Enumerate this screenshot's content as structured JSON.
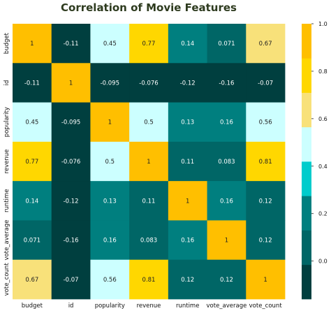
{
  "chart_data": {
    "type": "heatmap",
    "title": "Correlation of Movie Features",
    "variables": [
      "budget",
      "id",
      "popularity",
      "revenue",
      "runtime",
      "vote_average",
      "vote_count"
    ],
    "matrix": [
      [
        1,
        -0.11,
        0.45,
        0.77,
        0.14,
        0.071,
        0.67
      ],
      [
        -0.11,
        1,
        -0.095,
        -0.076,
        -0.12,
        -0.16,
        -0.07
      ],
      [
        0.45,
        -0.095,
        1,
        0.5,
        0.13,
        0.16,
        0.56
      ],
      [
        0.77,
        -0.076,
        0.5,
        1,
        0.11,
        0.083,
        0.81
      ],
      [
        0.14,
        -0.12,
        0.13,
        0.11,
        1,
        0.16,
        0.12
      ],
      [
        0.071,
        -0.16,
        0.16,
        0.083,
        0.16,
        1,
        0.12
      ],
      [
        0.67,
        -0.07,
        0.56,
        0.81,
        0.12,
        0.12,
        1
      ]
    ],
    "labels": [
      [
        "1",
        "-0.11",
        "0.45",
        "0.77",
        "0.14",
        "0.071",
        "0.67"
      ],
      [
        "-0.11",
        "1",
        "-0.095",
        "-0.076",
        "-0.12",
        "-0.16",
        "-0.07"
      ],
      [
        "0.45",
        "-0.095",
        "1",
        "0.5",
        "0.13",
        "0.16",
        "0.56"
      ],
      [
        "0.77",
        "-0.076",
        "0.5",
        "1",
        "0.11",
        "0.083",
        "0.81"
      ],
      [
        "0.14",
        "-0.12",
        "0.13",
        "0.11",
        "1",
        "0.16",
        "0.12"
      ],
      [
        "0.071",
        "-0.16",
        "0.16",
        "0.083",
        "0.16",
        "1",
        "0.12"
      ],
      [
        "0.67",
        "-0.07",
        "0.56",
        "0.81",
        "0.12",
        "0.12",
        "1"
      ]
    ],
    "colorbar": {
      "range": [
        -0.16,
        1
      ],
      "ticks": [
        0.0,
        0.2,
        0.4,
        0.6,
        0.8,
        1.0
      ],
      "tick_labels": [
        "0.0",
        "0.2",
        "0.4",
        "0.6",
        "0.8",
        "1.0"
      ],
      "colors": [
        "#003f3f",
        "#006666",
        "#007f7f",
        "#00cccc",
        "#ccffff",
        "#f8e17a",
        "#ffd700",
        "#ffbf00"
      ]
    }
  }
}
